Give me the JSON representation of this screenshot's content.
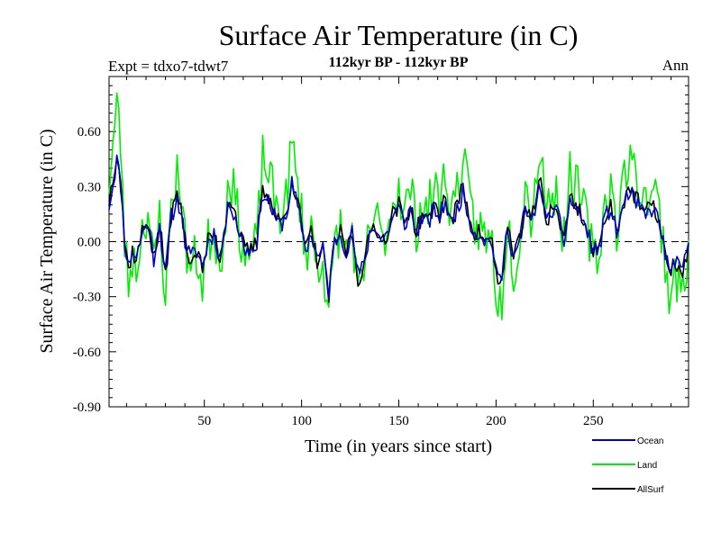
{
  "chart_data": {
    "type": "line",
    "title": "Surface Air Temperature (in C)",
    "subtitle": "112kyr BP - 112kyr BP",
    "left_label": "Expt = tdxo7-tdwt7",
    "right_label": "Ann",
    "xlabel": "Time (in years since start)",
    "ylabel": "Surface Air Temperature (in C)",
    "xlim": [
      1,
      299
    ],
    "ylim": [
      -0.9,
      0.9
    ],
    "x_ticks": [
      50,
      100,
      150,
      200,
      250
    ],
    "x_tick_labels": [
      "50",
      "100",
      "150",
      "200",
      "250"
    ],
    "y_ticks": [
      -0.9,
      -0.6,
      -0.3,
      0.0,
      0.3,
      0.6
    ],
    "y_tick_labels": [
      "-0.90",
      "-0.60",
      "-0.30",
      "0.00",
      "0.30",
      "0.60"
    ],
    "zero_line": true,
    "anchors": [
      [
        1,
        0.22
      ],
      [
        3,
        0.35
      ],
      [
        5,
        0.5
      ],
      [
        7,
        0.35
      ],
      [
        9,
        0.0
      ],
      [
        11,
        -0.15
      ],
      [
        13,
        -0.05
      ],
      [
        15,
        -0.1
      ],
      [
        18,
        0.05
      ],
      [
        21,
        0.12
      ],
      [
        24,
        -0.1
      ],
      [
        27,
        0.1
      ],
      [
        30,
        -0.2
      ],
      [
        33,
        0.15
      ],
      [
        36,
        0.25
      ],
      [
        38,
        0.2
      ],
      [
        40,
        0.0
      ],
      [
        43,
        -0.1
      ],
      [
        46,
        -0.05
      ],
      [
        49,
        -0.15
      ],
      [
        52,
        0.0
      ],
      [
        55,
        0.05
      ],
      [
        58,
        -0.1
      ],
      [
        61,
        0.12
      ],
      [
        63,
        0.25
      ],
      [
        66,
        0.15
      ],
      [
        68,
        0.05
      ],
      [
        71,
        -0.05
      ],
      [
        74,
        -0.05
      ],
      [
        77,
        0.0
      ],
      [
        80,
        0.3
      ],
      [
        83,
        0.25
      ],
      [
        86,
        0.15
      ],
      [
        89,
        0.1
      ],
      [
        92,
        0.15
      ],
      [
        95,
        0.35
      ],
      [
        97,
        0.25
      ],
      [
        100,
        0.1
      ],
      [
        102,
        -0.05
      ],
      [
        105,
        0.05
      ],
      [
        108,
        -0.1
      ],
      [
        111,
        -0.05
      ],
      [
        114,
        -0.3
      ],
      [
        117,
        0.0
      ],
      [
        120,
        0.05
      ],
      [
        123,
        -0.05
      ],
      [
        126,
        0.05
      ],
      [
        129,
        -0.2
      ],
      [
        132,
        -0.15
      ],
      [
        135,
        0.05
      ],
      [
        138,
        0.1
      ],
      [
        141,
        0.0
      ],
      [
        144,
        0.05
      ],
      [
        147,
        0.15
      ],
      [
        150,
        0.2
      ],
      [
        153,
        0.1
      ],
      [
        156,
        0.2
      ],
      [
        159,
        0.05
      ],
      [
        162,
        0.15
      ],
      [
        165,
        0.1
      ],
      [
        168,
        0.2
      ],
      [
        171,
        0.15
      ],
      [
        174,
        0.25
      ],
      [
        177,
        0.1
      ],
      [
        180,
        0.2
      ],
      [
        183,
        0.3
      ],
      [
        186,
        0.15
      ],
      [
        189,
        0.05
      ],
      [
        192,
        0.05
      ],
      [
        195,
        0.0
      ],
      [
        198,
        0.0
      ],
      [
        201,
        -0.25
      ],
      [
        203,
        -0.2
      ],
      [
        206,
        0.1
      ],
      [
        209,
        -0.1
      ],
      [
        212,
        0.0
      ],
      [
        215,
        0.2
      ],
      [
        218,
        0.1
      ],
      [
        221,
        0.25
      ],
      [
        223,
        0.35
      ],
      [
        226,
        0.1
      ],
      [
        229,
        0.2
      ],
      [
        232,
        0.15
      ],
      [
        235,
        0.0
      ],
      [
        238,
        0.25
      ],
      [
        241,
        0.2
      ],
      [
        244,
        0.15
      ],
      [
        247,
        0.05
      ],
      [
        250,
        -0.05
      ],
      [
        253,
        -0.05
      ],
      [
        256,
        0.15
      ],
      [
        259,
        0.2
      ],
      [
        262,
        0.05
      ],
      [
        265,
        0.2
      ],
      [
        268,
        0.3
      ],
      [
        271,
        0.25
      ],
      [
        274,
        0.2
      ],
      [
        277,
        0.15
      ],
      [
        280,
        0.2
      ],
      [
        283,
        0.15
      ],
      [
        286,
        0.0
      ],
      [
        289,
        -0.2
      ],
      [
        292,
        -0.1
      ],
      [
        295,
        -0.2
      ],
      [
        297,
        -0.1
      ],
      [
        299,
        -0.05
      ]
    ],
    "series": [
      {
        "name": "Ocean",
        "color": "#0000cc",
        "amp": 0.9,
        "noise": 0.05,
        "seed": 11
      },
      {
        "name": "Land",
        "color": "#00ee00",
        "amp": 1.5,
        "noise": 0.14,
        "seed": 23
      },
      {
        "name": "AllSurf",
        "color": "#000000",
        "amp": 1.0,
        "noise": 0.05,
        "seed": 37
      }
    ],
    "legend": {
      "placement": "bottom-right",
      "entries": [
        "Ocean",
        "Land",
        "AllSurf"
      ]
    }
  }
}
